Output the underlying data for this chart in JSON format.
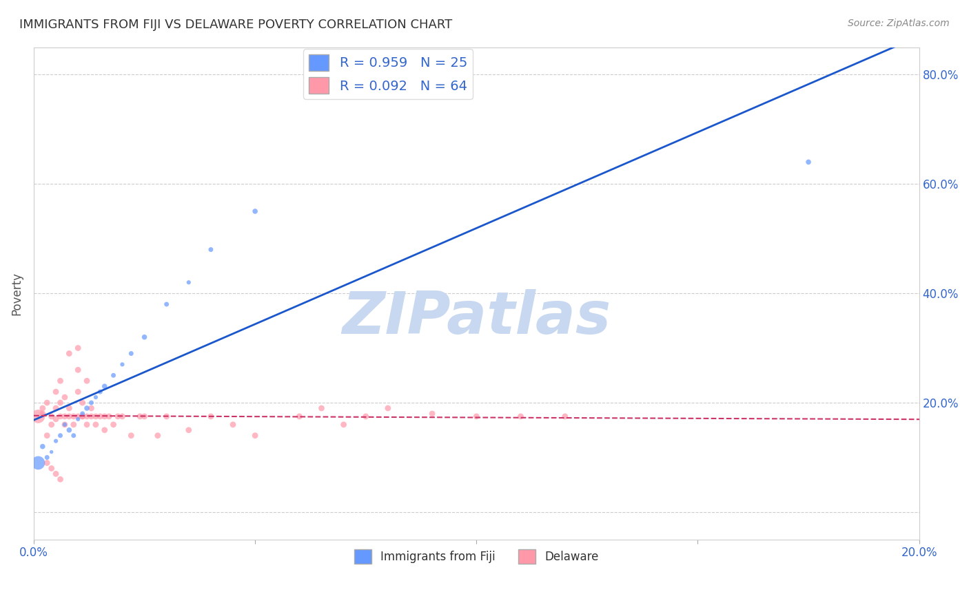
{
  "title": "IMMIGRANTS FROM FIJI VS DELAWARE POVERTY CORRELATION CHART",
  "source": "Source: ZipAtlas.com",
  "ylabel": "Poverty",
  "xlim": [
    0.0,
    0.2
  ],
  "ylim": [
    -0.05,
    0.85
  ],
  "yticks": [
    0.0,
    0.2,
    0.4,
    0.6,
    0.8
  ],
  "xticks": [
    0.0,
    0.05,
    0.1,
    0.15,
    0.2
  ],
  "xtick_labels": [
    "0.0%",
    "",
    "",
    "",
    "20.0%"
  ],
  "ytick_labels": [
    "",
    "20.0%",
    "40.0%",
    "60.0%",
    "80.0%"
  ],
  "fiji_R": 0.959,
  "fiji_N": 25,
  "delaware_R": 0.092,
  "delaware_N": 64,
  "fiji_color": "#6699ff",
  "fiji_line_color": "#1a56cc",
  "delaware_color": "#ff99aa",
  "delaware_line_color": "#cc3366",
  "watermark": "ZIPatlas",
  "watermark_color": "#c8d8f0",
  "fiji_scatter": [
    [
      0.002,
      0.12
    ],
    [
      0.003,
      0.1
    ],
    [
      0.005,
      0.13
    ],
    [
      0.004,
      0.11
    ],
    [
      0.006,
      0.14
    ],
    [
      0.007,
      0.16
    ],
    [
      0.008,
      0.15
    ],
    [
      0.009,
      0.14
    ],
    [
      0.01,
      0.17
    ],
    [
      0.011,
      0.18
    ],
    [
      0.012,
      0.19
    ],
    [
      0.013,
      0.2
    ],
    [
      0.014,
      0.21
    ],
    [
      0.015,
      0.22
    ],
    [
      0.016,
      0.23
    ],
    [
      0.018,
      0.25
    ],
    [
      0.02,
      0.27
    ],
    [
      0.022,
      0.29
    ],
    [
      0.025,
      0.32
    ],
    [
      0.03,
      0.38
    ],
    [
      0.035,
      0.42
    ],
    [
      0.04,
      0.48
    ],
    [
      0.05,
      0.55
    ],
    [
      0.001,
      0.09
    ],
    [
      0.175,
      0.64
    ]
  ],
  "fiji_sizes": [
    30,
    25,
    20,
    15,
    25,
    20,
    30,
    25,
    20,
    25,
    30,
    25,
    20,
    25,
    30,
    25,
    20,
    25,
    30,
    25,
    20,
    25,
    30,
    200,
    30
  ],
  "delaware_scatter": [
    [
      0.001,
      0.175
    ],
    [
      0.002,
      0.18
    ],
    [
      0.002,
      0.19
    ],
    [
      0.003,
      0.14
    ],
    [
      0.003,
      0.2
    ],
    [
      0.004,
      0.175
    ],
    [
      0.004,
      0.16
    ],
    [
      0.005,
      0.17
    ],
    [
      0.005,
      0.22
    ],
    [
      0.005,
      0.19
    ],
    [
      0.006,
      0.24
    ],
    [
      0.006,
      0.2
    ],
    [
      0.006,
      0.175
    ],
    [
      0.007,
      0.21
    ],
    [
      0.007,
      0.175
    ],
    [
      0.007,
      0.16
    ],
    [
      0.008,
      0.19
    ],
    [
      0.008,
      0.29
    ],
    [
      0.008,
      0.175
    ],
    [
      0.009,
      0.175
    ],
    [
      0.009,
      0.16
    ],
    [
      0.01,
      0.175
    ],
    [
      0.01,
      0.22
    ],
    [
      0.01,
      0.3
    ],
    [
      0.01,
      0.26
    ],
    [
      0.011,
      0.175
    ],
    [
      0.011,
      0.2
    ],
    [
      0.011,
      0.175
    ],
    [
      0.012,
      0.175
    ],
    [
      0.012,
      0.16
    ],
    [
      0.012,
      0.24
    ],
    [
      0.013,
      0.19
    ],
    [
      0.013,
      0.175
    ],
    [
      0.014,
      0.16
    ],
    [
      0.014,
      0.175
    ],
    [
      0.015,
      0.175
    ],
    [
      0.016,
      0.15
    ],
    [
      0.016,
      0.175
    ],
    [
      0.017,
      0.175
    ],
    [
      0.018,
      0.16
    ],
    [
      0.019,
      0.175
    ],
    [
      0.02,
      0.175
    ],
    [
      0.022,
      0.14
    ],
    [
      0.024,
      0.175
    ],
    [
      0.025,
      0.175
    ],
    [
      0.028,
      0.14
    ],
    [
      0.03,
      0.175
    ],
    [
      0.035,
      0.15
    ],
    [
      0.04,
      0.175
    ],
    [
      0.045,
      0.16
    ],
    [
      0.05,
      0.14
    ],
    [
      0.06,
      0.175
    ],
    [
      0.065,
      0.19
    ],
    [
      0.07,
      0.16
    ],
    [
      0.075,
      0.175
    ],
    [
      0.08,
      0.19
    ],
    [
      0.09,
      0.18
    ],
    [
      0.1,
      0.175
    ],
    [
      0.11,
      0.175
    ],
    [
      0.12,
      0.175
    ],
    [
      0.003,
      0.09
    ],
    [
      0.004,
      0.08
    ],
    [
      0.005,
      0.07
    ],
    [
      0.006,
      0.06
    ]
  ],
  "delaware_sizes": [
    200,
    40,
    40,
    40,
    40,
    40,
    40,
    40,
    40,
    40,
    40,
    40,
    40,
    40,
    40,
    40,
    40,
    40,
    40,
    40,
    40,
    40,
    40,
    40,
    40,
    40,
    40,
    40,
    40,
    40,
    40,
    40,
    40,
    40,
    40,
    40,
    40,
    40,
    40,
    40,
    40,
    40,
    40,
    40,
    40,
    40,
    40,
    40,
    40,
    40,
    40,
    40,
    40,
    40,
    40,
    40,
    40,
    40,
    40,
    40,
    40,
    40,
    40,
    40
  ]
}
